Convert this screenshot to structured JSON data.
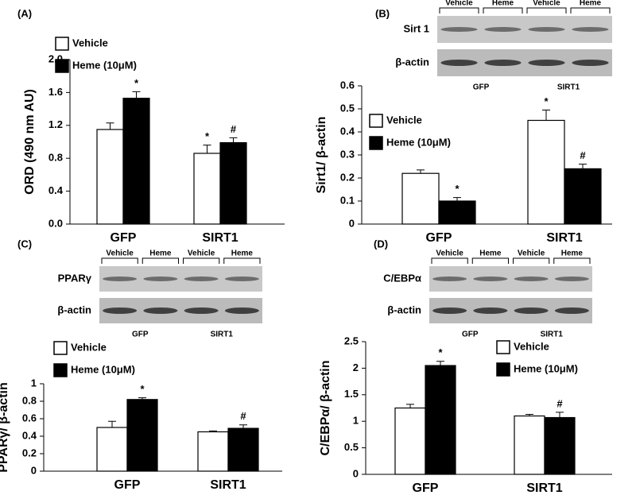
{
  "chart_data": [
    {
      "type": "bar",
      "panel": "(A)",
      "y_label": "ORD (490 nm AU)",
      "categories": [
        "GFP",
        "SIRT1"
      ],
      "series": [
        {
          "name": "Vehicle",
          "color": "#ffffff",
          "values": [
            1.15,
            0.86
          ],
          "errors": [
            0.08,
            0.1
          ],
          "markers": [
            null,
            "*"
          ]
        },
        {
          "name": "Heme (10μM)",
          "color": "#000000",
          "values": [
            1.53,
            0.99
          ],
          "errors": [
            0.08,
            0.06
          ],
          "markers": [
            "*",
            "#"
          ]
        }
      ],
      "ylim": [
        0,
        2
      ],
      "yticks": [
        {
          "value": 0,
          "label": "0.0"
        },
        0.4,
        0.8,
        1.2,
        1.6,
        {
          "value": 2,
          "label": "2.0"
        }
      ]
    },
    {
      "type": "bar",
      "panel": "(B)",
      "y_label": "Sirt1/ β-actin",
      "blot": {
        "rows": [
          "Sirt 1",
          "β-actin"
        ],
        "lanes": [
          "Vehicle",
          "Heme",
          "Vehicle",
          "Heme"
        ],
        "groups": [
          "GFP",
          "SIRT1"
        ]
      },
      "categories": [
        "GFP",
        "SIRT1"
      ],
      "series": [
        {
          "name": "Vehicle",
          "color": "#ffffff",
          "values": [
            0.22,
            0.45
          ],
          "errors": [
            0.015,
            0.045
          ],
          "markers": [
            null,
            "*"
          ]
        },
        {
          "name": "Heme (10μM)",
          "color": "#000000",
          "values": [
            0.1,
            0.24
          ],
          "errors": [
            0.015,
            0.02
          ],
          "markers": [
            "*",
            "#"
          ]
        }
      ],
      "ylim": [
        0,
        0.6
      ],
      "yticks": [
        0,
        0.1,
        0.2,
        0.3,
        0.4,
        0.5,
        0.6
      ]
    },
    {
      "type": "bar",
      "panel": "(C)",
      "y_label": "PPARγ/ β-actin",
      "blot": {
        "rows": [
          "PPARγ",
          "β-actin"
        ],
        "lanes": [
          "Vehicle",
          "Heme",
          "Vehicle",
          "Heme"
        ],
        "groups": [
          "GFP",
          "SIRT1"
        ]
      },
      "categories": [
        "GFP",
        "SIRT1"
      ],
      "series": [
        {
          "name": "Vehicle",
          "color": "#ffffff",
          "values": [
            0.5,
            0.45
          ],
          "errors": [
            0.07,
            0.01
          ],
          "markers": [
            null,
            null
          ]
        },
        {
          "name": "Heme (10μM)",
          "color": "#000000",
          "values": [
            0.82,
            0.49
          ],
          "errors": [
            0.02,
            0.04
          ],
          "markers": [
            "*",
            "#"
          ]
        }
      ],
      "ylim": [
        0,
        1
      ],
      "yticks": [
        0,
        0.2,
        0.4,
        0.6,
        0.8,
        1
      ]
    },
    {
      "type": "bar",
      "panel": "(D)",
      "y_label": "C/EBPα/ β-actin",
      "blot": {
        "rows": [
          "C/EBPα",
          "β-actin"
        ],
        "lanes": [
          "Vehicle",
          "Heme",
          "Vehicle",
          "Heme"
        ],
        "groups": [
          "GFP",
          "SIRT1"
        ]
      },
      "categories": [
        "GFP",
        "SIRT1"
      ],
      "series": [
        {
          "name": "Vehicle",
          "color": "#ffffff",
          "values": [
            1.25,
            1.1
          ],
          "errors": [
            0.07,
            0.03
          ],
          "markers": [
            null,
            null
          ]
        },
        {
          "name": "Heme (10μM)",
          "color": "#000000",
          "values": [
            2.05,
            1.07
          ],
          "errors": [
            0.08,
            0.1
          ],
          "markers": [
            "*",
            "#"
          ]
        }
      ],
      "ylim": [
        0,
        2.5
      ],
      "yticks": [
        0,
        0.5,
        1,
        1.5,
        2,
        2.5
      ]
    }
  ]
}
